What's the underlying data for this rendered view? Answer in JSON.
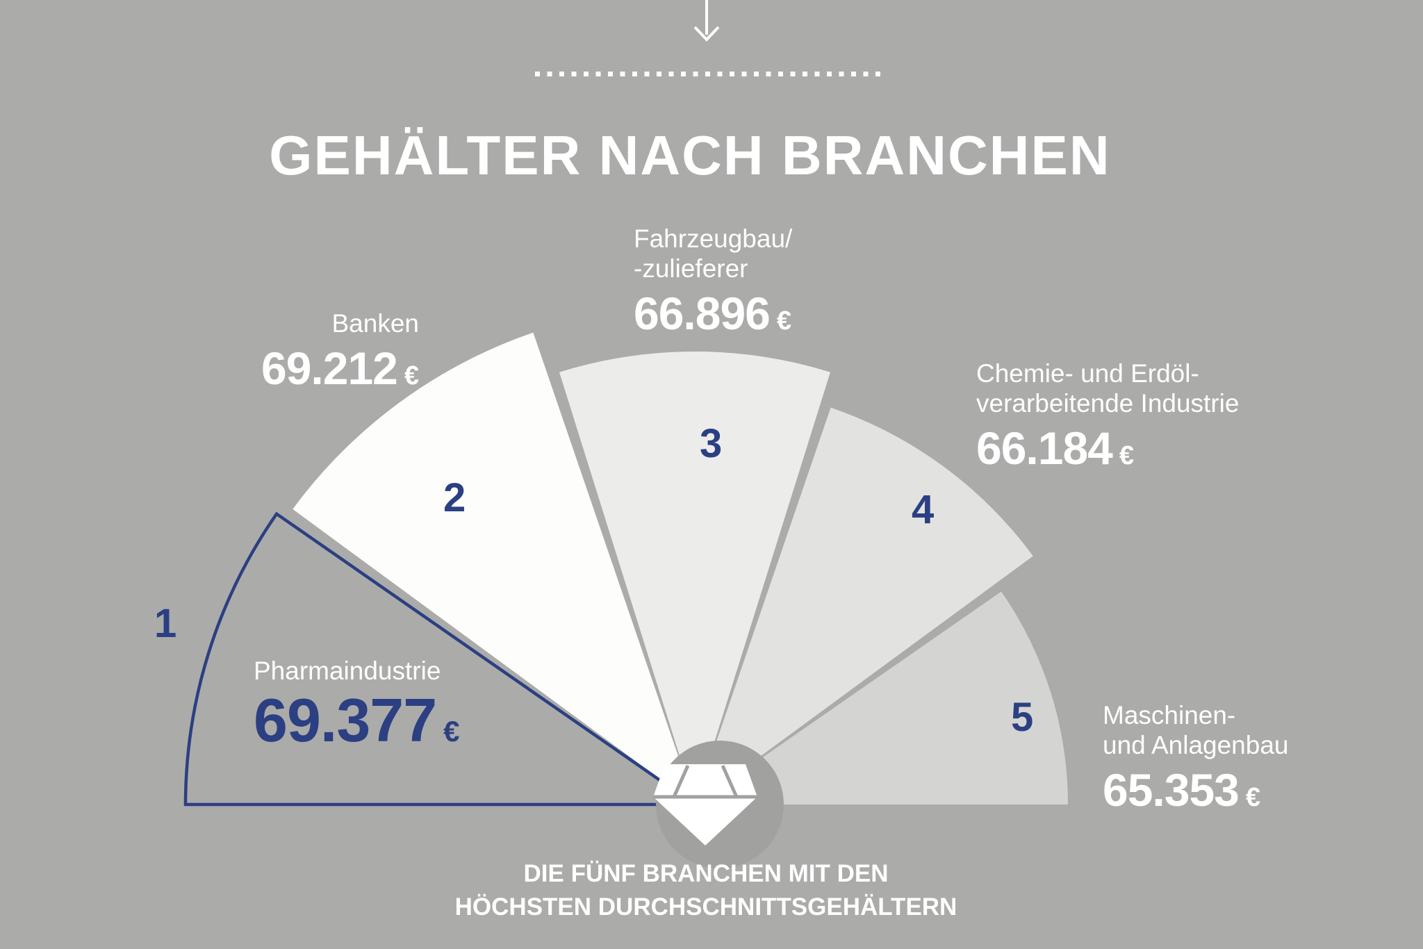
{
  "page": {
    "title": "GEHÄLTER NACH BRANCHEN",
    "top_arrow_icon": "arrow-down-icon",
    "separator_icon": "dotted-line",
    "center_icon": "diamond-icon",
    "caption_line1": "DIE FÜNF BRANCHEN MIT DEN",
    "caption_line2": "HÖCHSTEN DURCHSCHNITTSGEHÄLTERN"
  },
  "chart_data": {
    "type": "pie",
    "variant": "half-fan-ranking",
    "title": "GEHÄLTER NACH BRANCHEN",
    "caption": "DIE FÜNF BRANCHEN MIT DEN HÖCHSTEN DURCHSCHNITTSGEHÄLTERN",
    "currency_symbol": "€",
    "legend_position": "around-fan",
    "categories": [
      "Pharmaindustrie",
      "Banken",
      "Fahrzeugbau/-zulieferer",
      "Chemie- und Erdölverarbeitende Industrie",
      "Maschinen- und Anlagenbau"
    ],
    "values": [
      69377,
      69212,
      66896,
      66184,
      65353
    ],
    "industries": [
      {
        "rank": "1",
        "name": "Pharmaindustrie",
        "name_display": "Pharmaindustrie",
        "value": 69377,
        "value_text": "69.377",
        "fill": "none",
        "outline": "#2b3f82"
      },
      {
        "rank": "2",
        "name": "Banken",
        "name_display": "Banken",
        "value": 69212,
        "value_text": "69.212",
        "fill": "#fdfdfc",
        "outline": "none"
      },
      {
        "rank": "3",
        "name": "Fahrzeugbau/-zulieferer",
        "name_display": "Fahrzeugbau/\n-zulieferer",
        "value": 66896,
        "value_text": "66.896",
        "fill": "#ececea",
        "outline": "none"
      },
      {
        "rank": "4",
        "name": "Chemie- und Erdölverarbeitende Industrie",
        "name_display": "Chemie- und Erdöl-\nverarbeitende Industrie",
        "value": 66184,
        "value_text": "66.184",
        "fill": "#e2e2e0",
        "outline": "none"
      },
      {
        "rank": "5",
        "name": "Maschinen- und Anlagenbau",
        "name_display": "Maschinen-\nund Anlagenbau",
        "value": 65353,
        "value_text": "65.353",
        "fill": "#d4d4d2",
        "outline": "none"
      }
    ],
    "colors": {
      "accent_navy": "#2b3f82",
      "background": "#ababa9",
      "text_white": "#ffffff",
      "center_circle": "#a1a19f",
      "white_segment": "#fdfdfc"
    }
  }
}
